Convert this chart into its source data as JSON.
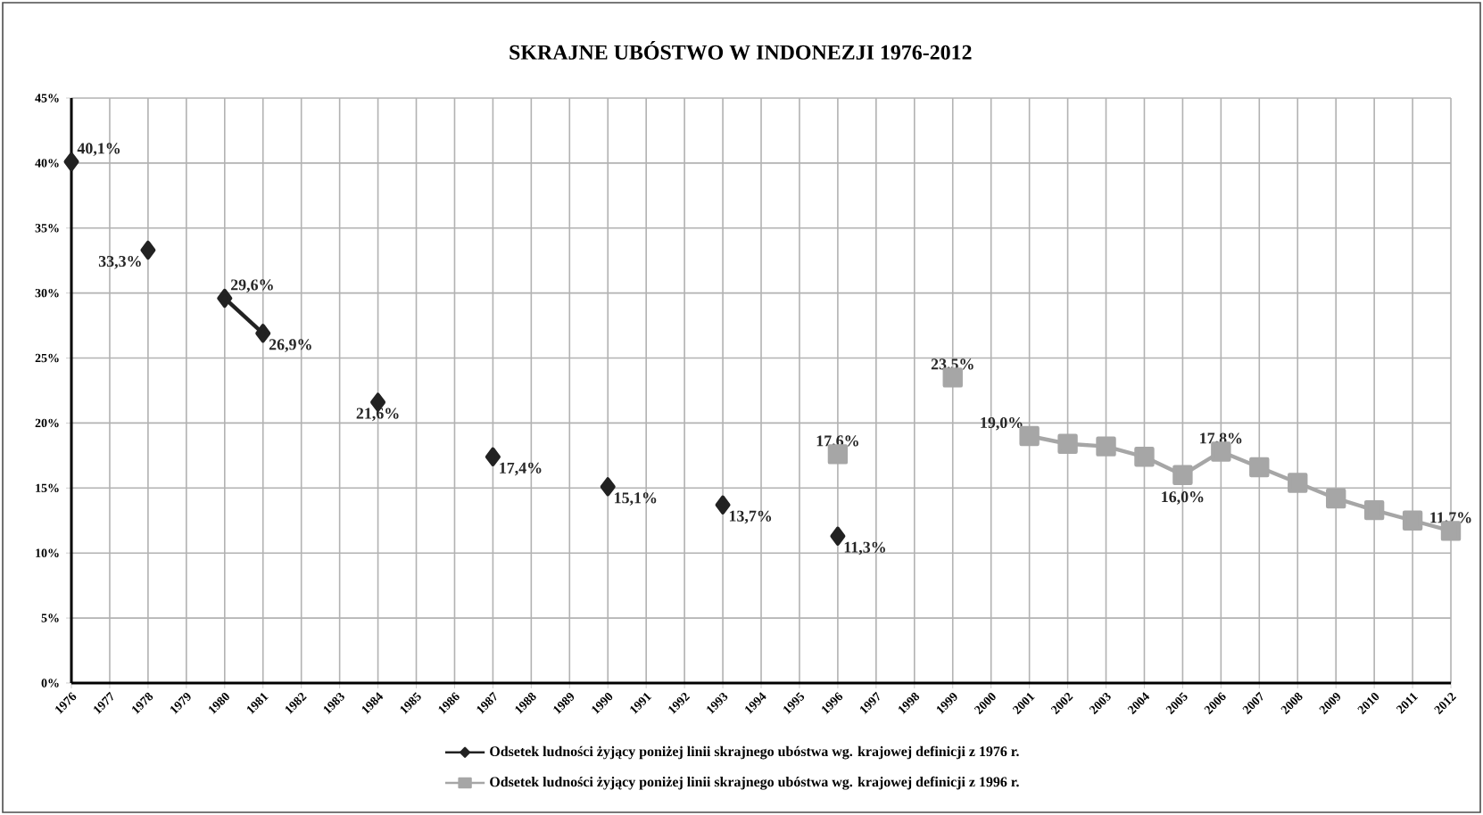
{
  "chart_data": {
    "type": "line",
    "title": "SKRAJNE UBÓSTWO W INDONEZJI 1976-2012",
    "categories": [
      "1976",
      "1977",
      "1978",
      "1979",
      "1980",
      "1981",
      "1982",
      "1983",
      "1984",
      "1985",
      "1986",
      "1987",
      "1988",
      "1989",
      "1990",
      "1991",
      "1992",
      "1993",
      "1994",
      "1995",
      "1996",
      "1997",
      "1998",
      "1999",
      "2000",
      "2001",
      "2002",
      "2003",
      "2004",
      "2005",
      "2006",
      "2007",
      "2008",
      "2009",
      "2010",
      "2011",
      "2012"
    ],
    "series": [
      {
        "name": "Odsetek ludności żyjący poniżej linii skrajnego ubóstwa wg. krajowej definicji z 1976 r.",
        "color": "#222222",
        "marker": "diamond",
        "values": [
          40.1,
          null,
          33.3,
          null,
          29.6,
          26.9,
          null,
          null,
          21.6,
          null,
          null,
          17.4,
          null,
          null,
          15.1,
          null,
          null,
          13.7,
          null,
          null,
          11.3,
          null,
          null,
          null,
          null,
          null,
          null,
          null,
          null,
          null,
          null,
          null,
          null,
          null,
          null,
          null,
          null
        ],
        "value_labels": [
          "40,1%",
          null,
          "33,3%",
          null,
          "29,6%",
          "26,9%",
          null,
          null,
          "21,6%",
          null,
          null,
          "17,4%",
          null,
          null,
          "15,1%",
          null,
          null,
          "13,7%",
          null,
          null,
          "11,3%",
          null,
          null,
          null,
          null,
          null,
          null,
          null,
          null,
          null,
          null,
          null,
          null,
          null,
          null,
          null,
          null
        ]
      },
      {
        "name": "Odsetek ludności żyjący poniżej linii skrajnego ubóstwa wg. krajowej definicji z 1996 r.",
        "color": "#a6a6a6",
        "marker": "square",
        "values": [
          null,
          null,
          null,
          null,
          null,
          null,
          null,
          null,
          null,
          null,
          null,
          null,
          null,
          null,
          null,
          null,
          null,
          null,
          null,
          null,
          17.6,
          null,
          null,
          23.5,
          null,
          19.0,
          18.4,
          18.2,
          17.4,
          16.0,
          17.8,
          16.6,
          15.4,
          14.2,
          13.3,
          12.5,
          11.7
        ],
        "value_labels": [
          null,
          null,
          null,
          null,
          null,
          null,
          null,
          null,
          null,
          null,
          null,
          null,
          null,
          null,
          null,
          null,
          null,
          null,
          null,
          null,
          "17,6%",
          null,
          null,
          "23,5%",
          null,
          "19,0%",
          null,
          null,
          null,
          "16,0%",
          "17,8%",
          null,
          null,
          null,
          null,
          null,
          "11,7%"
        ]
      }
    ],
    "ylim": [
      0,
      45
    ],
    "yticks": [
      {
        "value": 0,
        "label": "0%"
      },
      {
        "value": 5,
        "label": "5%"
      },
      {
        "value": 10,
        "label": "10%"
      },
      {
        "value": 15,
        "label": "15%"
      },
      {
        "value": 20,
        "label": "20%"
      },
      {
        "value": 25,
        "label": "25%"
      },
      {
        "value": 30,
        "label": "30%"
      },
      {
        "value": 35,
        "label": "35%"
      },
      {
        "value": 40,
        "label": "40%"
      },
      {
        "value": 45,
        "label": "45%"
      }
    ],
    "grid": true,
    "legend": "bottom"
  }
}
